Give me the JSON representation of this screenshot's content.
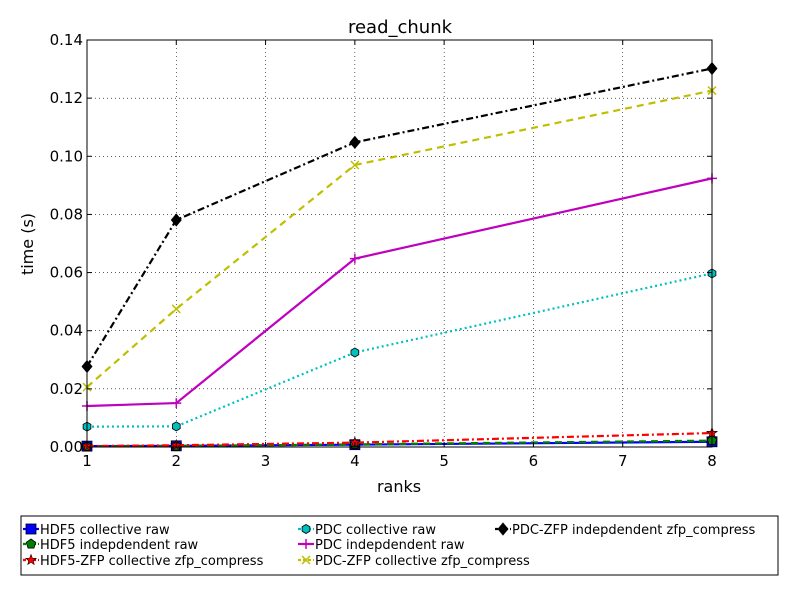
{
  "chart_data": {
    "type": "line",
    "title": "read_chunk",
    "xlabel": "ranks",
    "ylabel": "time (s)",
    "xlim": [
      1,
      8
    ],
    "ylim": [
      0,
      0.14
    ],
    "xticks": [
      "1",
      "2",
      "3",
      "4",
      "5",
      "6",
      "7",
      "8"
    ],
    "yticks": [
      "0.00",
      "0.02",
      "0.04",
      "0.06",
      "0.08",
      "0.10",
      "0.12",
      "0.14"
    ],
    "x": [
      1,
      2,
      4,
      8
    ],
    "grid": true,
    "legend_position": "below plot",
    "series": [
      {
        "name": "HDF5 collective raw",
        "color": "#0000ff",
        "linestyle": "solid",
        "marker": "square",
        "values": [
          0.0003,
          0.0004,
          0.0008,
          0.0018
        ]
      },
      {
        "name": "HDF5 indepdendent raw",
        "color": "#008000",
        "linestyle": "dashed",
        "marker": "pentagon",
        "values": [
          0.0002,
          0.0003,
          0.0009,
          0.0022
        ]
      },
      {
        "name": "HDF5-ZFP collective zfp_compress",
        "color": "#ff0000",
        "linestyle": "dashdot",
        "marker": "star",
        "values": [
          0.0003,
          0.0006,
          0.0015,
          0.0048
        ]
      },
      {
        "name": "PDC collective raw",
        "color": "#00bfbf",
        "linestyle": "dotted",
        "marker": "hexagon",
        "values": [
          0.007,
          0.0071,
          0.0325,
          0.0597
        ]
      },
      {
        "name": "PDC indepdendent raw",
        "color": "#bf00bf",
        "linestyle": "solid",
        "marker": "plus",
        "values": [
          0.0141,
          0.0151,
          0.0648,
          0.0924
        ]
      },
      {
        "name": "PDC-ZFP collective zfp_compress",
        "color": "#bfbf00",
        "linestyle": "dashed",
        "marker": "x",
        "values": [
          0.0206,
          0.0475,
          0.097,
          0.1226
        ]
      },
      {
        "name": "PDC-ZFP indepdendent zfp_compress",
        "color": "#000000",
        "linestyle": "dashdot",
        "marker": "diamond",
        "values": [
          0.0277,
          0.0781,
          0.1048,
          0.1302
        ]
      }
    ]
  }
}
